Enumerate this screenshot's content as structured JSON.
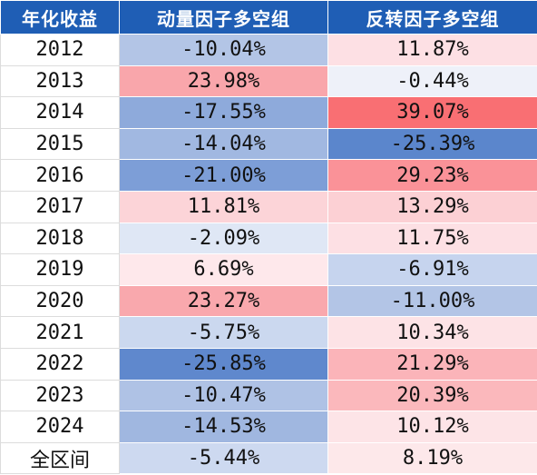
{
  "table": {
    "headers": [
      "年化收益",
      "动量因子多空组",
      "反转因子多空组"
    ],
    "rows": [
      {
        "label": "2012",
        "momentum": "-10.04%",
        "reversal": "11.87%",
        "momentum_color": "#b3c5e6",
        "reversal_color": "#fde0e4"
      },
      {
        "label": "2013",
        "momentum": "23.98%",
        "reversal": "-0.44%",
        "momentum_color": "#f9a6ab",
        "reversal_color": "#eef1f9"
      },
      {
        "label": "2014",
        "momentum": "-17.55%",
        "reversal": "39.07%",
        "momentum_color": "#8eaadb",
        "reversal_color": "#f96f73"
      },
      {
        "label": "2015",
        "momentum": "-14.04%",
        "reversal": "-25.39%",
        "momentum_color": "#a1b8e1",
        "reversal_color": "#5b86cc"
      },
      {
        "label": "2016",
        "momentum": "-21.00%",
        "reversal": "29.23%",
        "momentum_color": "#7d9ed7",
        "reversal_color": "#fa9298"
      },
      {
        "label": "2017",
        "momentum": "11.81%",
        "reversal": "13.29%",
        "momentum_color": "#fcd4d8",
        "reversal_color": "#fcd0d4"
      },
      {
        "label": "2018",
        "momentum": "-2.09%",
        "reversal": "11.75%",
        "momentum_color": "#dfe7f5",
        "reversal_color": "#fde0e4"
      },
      {
        "label": "2019",
        "momentum": "6.69%",
        "reversal": "-6.91%",
        "momentum_color": "#fee8eb",
        "reversal_color": "#c6d4ee"
      },
      {
        "label": "2020",
        "momentum": "23.27%",
        "reversal": "-11.00%",
        "momentum_color": "#f9a8ad",
        "reversal_color": "#b3c5e6"
      },
      {
        "label": "2021",
        "momentum": "-5.75%",
        "reversal": "10.34%",
        "momentum_color": "#cbd8ef",
        "reversal_color": "#fde3e6"
      },
      {
        "label": "2022",
        "momentum": "-25.85%",
        "reversal": "21.29%",
        "momentum_color": "#5f88cd",
        "reversal_color": "#fbb4b9"
      },
      {
        "label": "2023",
        "momentum": "-10.47%",
        "reversal": "20.39%",
        "momentum_color": "#afc2e5",
        "reversal_color": "#fbb8bc"
      },
      {
        "label": "2024",
        "momentum": "-14.53%",
        "reversal": "10.12%",
        "momentum_color": "#a0b7e0",
        "reversal_color": "#fde4e7"
      },
      {
        "label": "全区间",
        "momentum": "-5.44%",
        "reversal": "8.19%",
        "momentum_color": "#cdd9f0",
        "reversal_color": "#fde8ea"
      }
    ]
  }
}
